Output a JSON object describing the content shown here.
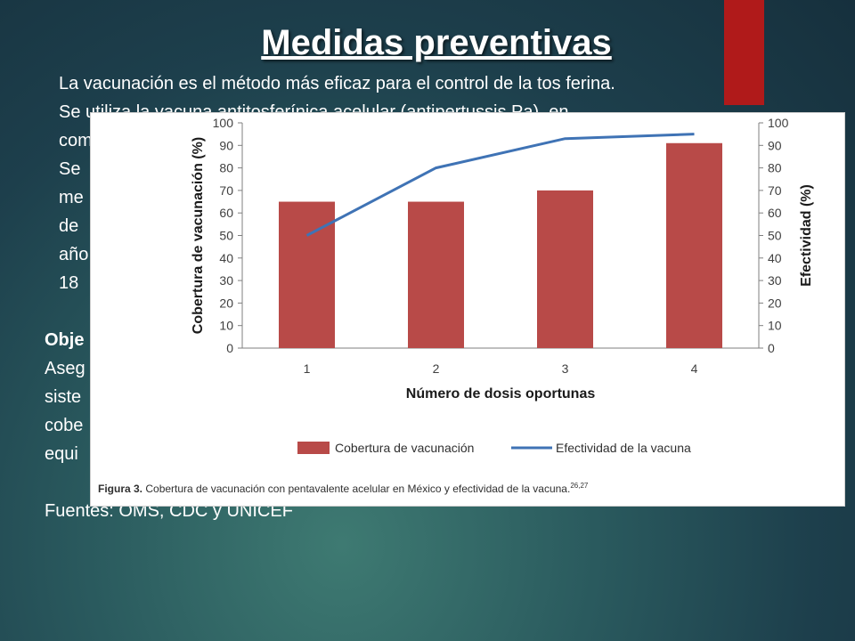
{
  "slide": {
    "title": "Medidas preventivas",
    "paragraph_lines": [
      "La vacunación es el método más eficaz para el control de la tos ferina.",
      "Se utiliza la vacuna antitosferínica acelular (antipertussis Pa), en",
      "com",
      "Se",
      "me",
      "de",
      "año",
      "18"
    ],
    "objective_heading": "Obje",
    "objective_lines": [
      "Aseg",
      "siste",
      "cobe",
      "equi"
    ],
    "sources": "Fuentes: OMS, CDC y UNICEF",
    "colors": {
      "accent": "#b01a1a",
      "background": "#1d3f4c",
      "text": "#ffffff"
    }
  },
  "chart_data": {
    "type": "bar",
    "categories": [
      "1",
      "2",
      "3",
      "4"
    ],
    "series": [
      {
        "name": "Cobertura de vacunación",
        "kind": "bar",
        "axis": "left",
        "values": [
          65,
          65,
          70,
          91
        ],
        "color": "#b84a48"
      },
      {
        "name": "Efectividad de la vacuna",
        "kind": "line",
        "axis": "right",
        "values": [
          50,
          80,
          93,
          95
        ],
        "color": "#3f73b5"
      }
    ],
    "xlabel": "Número de dosis oportunas",
    "ylabel": "Cobertura de vacunación (%)",
    "y2label": "Efectividad (%)",
    "ylim": [
      0,
      100
    ],
    "y2lim": [
      0,
      100
    ],
    "yticks": [
      "0",
      "10",
      "20",
      "30",
      "40",
      "50",
      "60",
      "70",
      "80",
      "90",
      "100"
    ],
    "grid": false,
    "legend": "bottom",
    "caption_bold": "Figura 3.",
    "caption_text": " Cobertura de vacunación con pentavalente acelular en México y efectividad de la vacuna.",
    "caption_ref": "26,27"
  }
}
